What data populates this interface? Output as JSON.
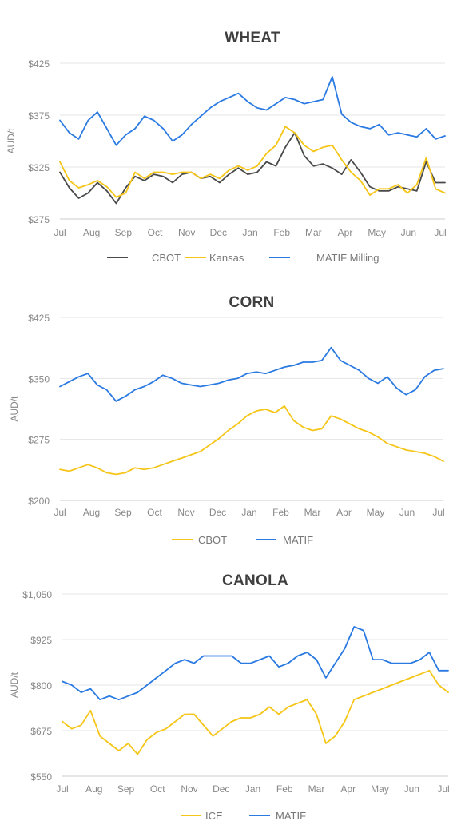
{
  "chart_data": [
    {
      "type": "line",
      "title": "WHEAT",
      "ylabel": "AUD/t",
      "ylim": [
        275,
        425
      ],
      "yticks": [
        275,
        325,
        375,
        425
      ],
      "ytick_labels": [
        "$275",
        "$325",
        "$375",
        "$425"
      ],
      "x_labels": [
        "Jul",
        "Aug",
        "Sep",
        "Oct",
        "Nov",
        "Dec",
        "Jan",
        "Feb",
        "Mar",
        "Apr",
        "May",
        "Jun",
        "Jul"
      ],
      "grid": true,
      "legend_position": "bottom",
      "series": [
        {
          "name": "CBOT",
          "color": "#4a4a4a",
          "values": [
            320,
            305,
            295,
            300,
            310,
            302,
            290,
            305,
            316,
            312,
            318,
            316,
            310,
            318,
            320,
            314,
            316,
            310,
            318,
            324,
            318,
            320,
            330,
            326,
            344,
            358,
            336,
            326,
            328,
            324,
            318,
            332,
            320,
            306,
            302,
            302,
            306,
            304,
            302,
            330,
            310,
            310
          ]
        },
        {
          "name": "Kansas",
          "color": "#f5c518",
          "values": [
            330,
            312,
            305,
            308,
            312,
            306,
            296,
            300,
            320,
            314,
            320,
            320,
            318,
            320,
            320,
            314,
            318,
            314,
            322,
            326,
            322,
            326,
            338,
            346,
            364,
            358,
            346,
            340,
            344,
            346,
            332,
            320,
            312,
            298,
            304,
            304,
            308,
            300,
            308,
            334,
            304,
            300
          ]
        },
        {
          "name": "MATIF Milling",
          "color": "#2a7ae2",
          "values": [
            370,
            358,
            352,
            370,
            378,
            362,
            346,
            356,
            362,
            374,
            370,
            362,
            350,
            356,
            366,
            374,
            382,
            388,
            392,
            396,
            388,
            382,
            380,
            386,
            392,
            390,
            386,
            388,
            390,
            412,
            376,
            368,
            364,
            362,
            366,
            356,
            358,
            356,
            354,
            362,
            352,
            355
          ]
        }
      ]
    },
    {
      "type": "line",
      "title": "CORN",
      "ylabel": "AUD/t",
      "ylim": [
        200,
        425
      ],
      "yticks": [
        200,
        275,
        350,
        425
      ],
      "ytick_labels": [
        "$200",
        "$275",
        "$350",
        "$425"
      ],
      "x_labels": [
        "Jul",
        "Aug",
        "Sep",
        "Oct",
        "Nov",
        "Dec",
        "Jan",
        "Feb",
        "Mar",
        "Apr",
        "May",
        "Jun",
        "Jul"
      ],
      "grid": true,
      "legend_position": "bottom",
      "series": [
        {
          "name": "CBOT",
          "color": "#f5c518",
          "values": [
            238,
            236,
            240,
            244,
            240,
            234,
            232,
            234,
            240,
            238,
            240,
            244,
            248,
            252,
            256,
            260,
            268,
            276,
            286,
            294,
            304,
            310,
            312,
            308,
            316,
            298,
            290,
            286,
            288,
            304,
            300,
            294,
            288,
            284,
            278,
            270,
            266,
            262,
            260,
            258,
            254,
            248
          ]
        },
        {
          "name": "MATIF",
          "color": "#2a7ae2",
          "values": [
            340,
            346,
            352,
            356,
            342,
            336,
            322,
            328,
            336,
            340,
            346,
            354,
            350,
            344,
            342,
            340,
            342,
            344,
            348,
            350,
            356,
            358,
            356,
            360,
            364,
            366,
            370,
            370,
            372,
            388,
            372,
            366,
            360,
            350,
            344,
            352,
            338,
            330,
            336,
            352,
            360,
            362
          ]
        }
      ]
    },
    {
      "type": "line",
      "title": "CANOLA",
      "ylabel": "AUD/t",
      "ylim": [
        550,
        1050
      ],
      "yticks": [
        550,
        675,
        800,
        925,
        1050
      ],
      "ytick_labels": [
        "$550",
        "$675",
        "$800",
        "$925",
        "$1,050"
      ],
      "x_labels": [
        "Jul",
        "Aug",
        "Sep",
        "Oct",
        "Nov",
        "Dec",
        "Jan",
        "Feb",
        "Mar",
        "Apr",
        "May",
        "Jun",
        "Jul"
      ],
      "grid": true,
      "legend_position": "bottom",
      "series": [
        {
          "name": "ICE",
          "color": "#f5c518",
          "values": [
            700,
            680,
            690,
            730,
            660,
            640,
            620,
            640,
            610,
            650,
            670,
            680,
            700,
            720,
            720,
            690,
            660,
            680,
            700,
            710,
            710,
            720,
            740,
            720,
            740,
            750,
            760,
            720,
            640,
            660,
            700,
            760,
            770,
            780,
            790,
            800,
            810,
            820,
            830,
            840,
            800,
            780
          ]
        },
        {
          "name": "MATIF",
          "color": "#2a7ae2",
          "values": [
            810,
            800,
            780,
            790,
            760,
            770,
            760,
            770,
            780,
            800,
            820,
            840,
            860,
            870,
            860,
            880,
            880,
            880,
            880,
            860,
            860,
            870,
            880,
            850,
            860,
            880,
            890,
            870,
            820,
            860,
            900,
            960,
            950,
            870,
            870,
            860,
            860,
            860,
            870,
            890,
            840,
            840
          ]
        }
      ]
    }
  ]
}
